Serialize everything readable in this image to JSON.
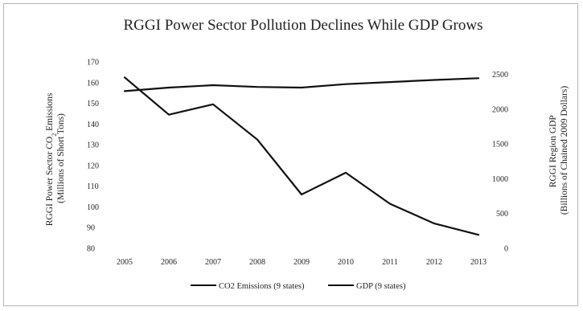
{
  "chart_data": {
    "type": "line",
    "title": "RGGI Power Sector Pollution Declines While GDP Grows",
    "x": [
      "2005",
      "2006",
      "2007",
      "2008",
      "2009",
      "2010",
      "2011",
      "2012",
      "2013"
    ],
    "y_left_label_line1": "RGGI Power Sector CO",
    "y_left_label_sub": "2",
    "y_left_label_line1_tail": " Emissions",
    "y_left_label_line2": "(Millions of Short Tons)",
    "y_right_label_line1": "RGGI Region GDP",
    "y_right_label_line2": "(Billions of Chained 2009 Dollars)",
    "y_left_ticks": [
      80,
      90,
      100,
      110,
      120,
      130,
      140,
      150,
      160,
      170
    ],
    "y_left_lim": [
      80,
      170
    ],
    "y_right_ticks": [
      0,
      500,
      1000,
      1500,
      2000,
      2500
    ],
    "y_right_lim": [
      0,
      2680
    ],
    "series": [
      {
        "name": "CO2 Emissions (9 states)",
        "axis": "left",
        "values": [
          162.5,
          144.5,
          149.5,
          132.5,
          106,
          116.5,
          101.5,
          92,
          86.5
        ]
      },
      {
        "name": "GDP (9 states)",
        "axis": "right",
        "values": [
          2260,
          2310,
          2345,
          2320,
          2310,
          2360,
          2390,
          2420,
          2445
        ]
      }
    ],
    "legend_position": "bottom",
    "grid": false
  }
}
